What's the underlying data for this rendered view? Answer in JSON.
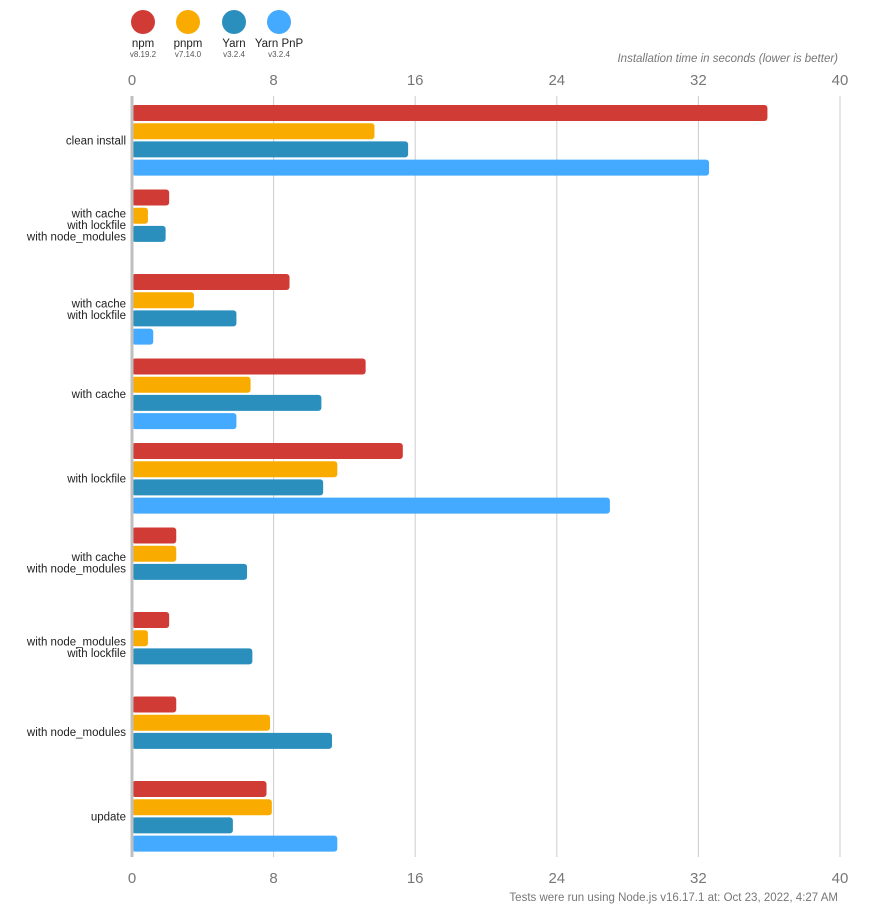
{
  "chart_data": {
    "type": "bar",
    "orientation": "horizontal",
    "axis_title": "Installation time in seconds (lower is better)",
    "footnote": "Tests were run using Node.js v16.17.1 at: Oct 23, 2022, 4:27 AM",
    "xlim": [
      0,
      40
    ],
    "xticks": [
      "0",
      "8",
      "16",
      "24",
      "32",
      "40"
    ],
    "grid": true,
    "legend_position": "top-left",
    "categories": [
      [
        "clean install"
      ],
      [
        "with cache",
        "with lockfile",
        "with node_modules"
      ],
      [
        "with cache",
        "with lockfile"
      ],
      [
        "with cache"
      ],
      [
        "with lockfile"
      ],
      [
        "with cache",
        "with node_modules"
      ],
      [
        "with node_modules",
        "with lockfile"
      ],
      [
        "with node_modules"
      ],
      [
        "update"
      ]
    ],
    "series": [
      {
        "name": "npm",
        "version": "v8.19.2",
        "color": "#d13b35",
        "values": [
          35.9,
          2.1,
          8.9,
          13.2,
          15.3,
          2.5,
          2.1,
          2.5,
          7.6
        ]
      },
      {
        "name": "pnpm",
        "version": "v7.14.0",
        "color": "#f9ab00",
        "values": [
          13.7,
          0.9,
          3.5,
          6.7,
          11.6,
          2.5,
          0.9,
          7.8,
          7.9
        ]
      },
      {
        "name": "Yarn",
        "version": "v3.2.4",
        "color": "#2a8fbd",
        "values": [
          15.6,
          1.9,
          5.9,
          10.7,
          10.8,
          6.5,
          6.8,
          11.3,
          5.7
        ]
      },
      {
        "name": "Yarn PnP",
        "version": "v3.2.4",
        "color": "#44aaff",
        "values": [
          32.6,
          null,
          1.2,
          5.9,
          27.0,
          null,
          null,
          null,
          11.6
        ]
      }
    ]
  }
}
